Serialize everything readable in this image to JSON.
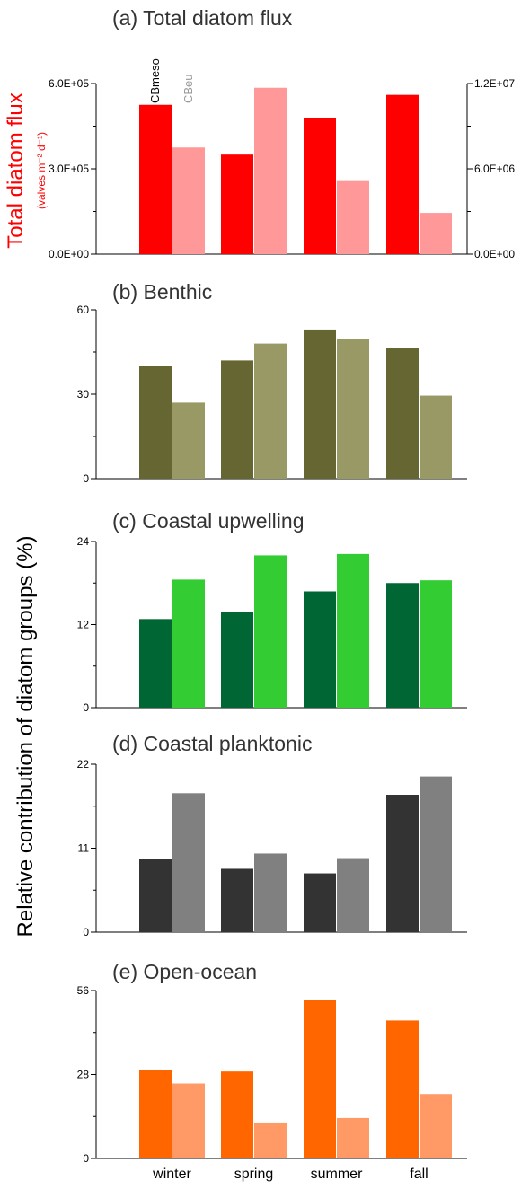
{
  "figure": {
    "left_ylabel": "Total diatom flux",
    "left_yunit": "(valves m⁻² d⁻¹)",
    "shared_ylabel": "Relative contribution of diatom groups  (%)",
    "series_labels": [
      "CBmeso",
      "CBeu"
    ]
  },
  "chart_data": [
    {
      "type": "bar",
      "title": "(a) Total diatom flux",
      "categories": [
        "winter",
        "spring",
        "summer",
        "fall"
      ],
      "ylim": [
        0,
        600000
      ],
      "yticks": [
        0,
        300000,
        600000
      ],
      "ytick_labels": [
        "0.0E+00",
        "3.0E+05",
        "6.0E+05"
      ],
      "y2lim": [
        0,
        12000000
      ],
      "y2ticks": [
        0,
        6000000,
        12000000
      ],
      "y2tick_labels": [
        "0.0E+00",
        "6.0E+06",
        "1.2E+07"
      ],
      "series": [
        {
          "name": "CBmeso",
          "axis": "left",
          "color": "#ff0000",
          "values": [
            525000,
            350000,
            480000,
            560000
          ]
        },
        {
          "name": "CBeu",
          "axis": "right",
          "color": "#ff9999",
          "values": [
            7500000,
            11700000,
            5200000,
            2900000
          ]
        }
      ]
    },
    {
      "type": "bar",
      "title": "(b) Benthic",
      "categories": [
        "winter",
        "spring",
        "summer",
        "fall"
      ],
      "ylim": [
        0,
        60
      ],
      "yticks": [
        0,
        30,
        60
      ],
      "ytick_labels": [
        "0",
        "30",
        "60"
      ],
      "series": [
        {
          "color": "#666633",
          "values": [
            40,
            42,
            53,
            46.5
          ]
        },
        {
          "color": "#999966",
          "values": [
            27,
            48,
            49.5,
            29.5
          ]
        }
      ]
    },
    {
      "type": "bar",
      "title": "(c) Coastal upwelling",
      "categories": [
        "winter",
        "spring",
        "summer",
        "fall"
      ],
      "ylim": [
        0,
        24
      ],
      "yticks": [
        0,
        12,
        24
      ],
      "ytick_labels": [
        "0",
        "12",
        "24"
      ],
      "series": [
        {
          "color": "#006633",
          "values": [
            12.8,
            13.8,
            16.8,
            18
          ]
        },
        {
          "color": "#33cc33",
          "values": [
            18.5,
            22,
            22.2,
            18.4
          ]
        }
      ]
    },
    {
      "type": "bar",
      "title": "(d) Coastal planktonic",
      "categories": [
        "winter",
        "spring",
        "summer",
        "fall"
      ],
      "ylim": [
        0,
        22
      ],
      "yticks": [
        0,
        11,
        22
      ],
      "ytick_labels": [
        "0",
        "11",
        "22"
      ],
      "series": [
        {
          "color": "#333333",
          "values": [
            9.6,
            8.3,
            7.7,
            18
          ]
        },
        {
          "color": "#808080",
          "values": [
            18.2,
            10.3,
            9.7,
            20.4
          ]
        }
      ]
    },
    {
      "type": "bar",
      "title": "(e) Open-ocean",
      "categories": [
        "winter",
        "spring",
        "summer",
        "fall"
      ],
      "ylim": [
        0,
        56
      ],
      "yticks": [
        0,
        28,
        56
      ],
      "ytick_labels": [
        "0",
        "28",
        "56"
      ],
      "series": [
        {
          "color": "#ff6600",
          "values": [
            29.5,
            29,
            53,
            46
          ]
        },
        {
          "color": "#ff9966",
          "values": [
            25,
            12,
            13.5,
            21.5
          ]
        }
      ]
    }
  ]
}
